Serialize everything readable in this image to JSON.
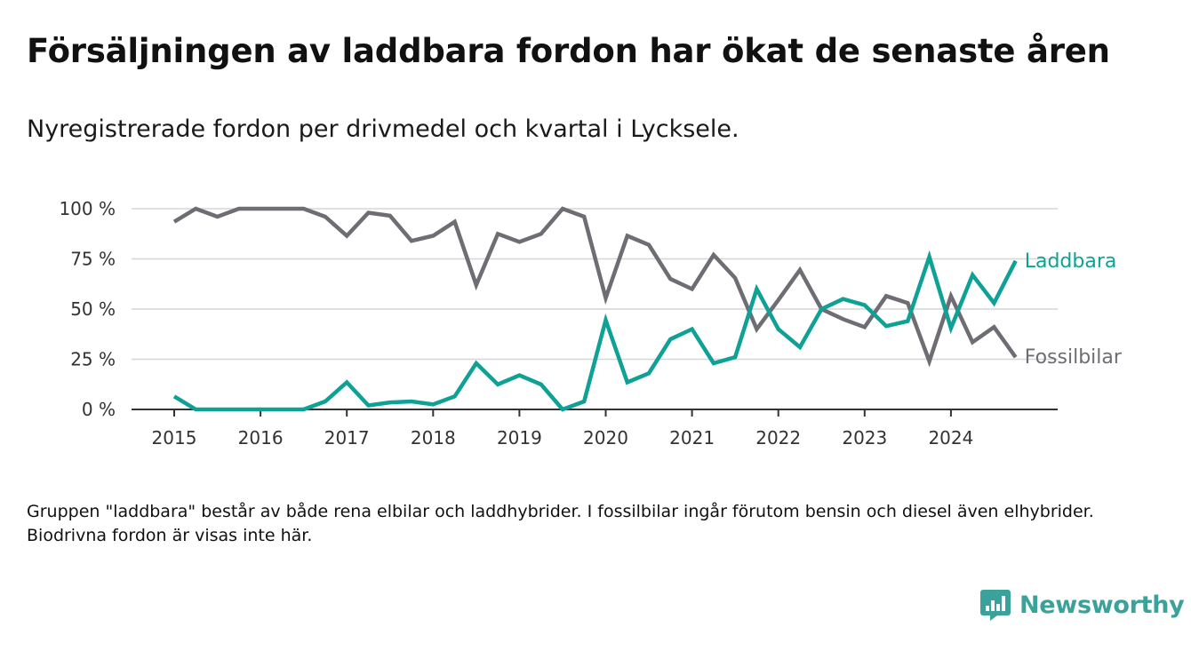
{
  "header": {
    "title": "Försäljningen av laddbara fordon har ökat de senaste åren",
    "subtitle": "Nyregistrerade fordon per drivmedel och kvartal i Lycksele."
  },
  "footer": {
    "note": "Gruppen \"laddbara\" består av både rena elbilar och laddhybrider. I fossilbilar ingår förutom bensin och diesel även elhybrider. Biodrivna fordon är visas inte här.",
    "brand": "Newsworthy"
  },
  "colors": {
    "laddbara": "#0fa195",
    "fossil": "#6e6d73",
    "grid": "#d6d6d6",
    "axis": "#333333",
    "brand": "#3aa29a"
  },
  "icons": {
    "brand": "bar-chart-logo-icon"
  },
  "chart_data": {
    "type": "line",
    "title": "Försäljningen av laddbara fordon har ökat de senaste åren",
    "subtitle": "Nyregistrerade fordon per drivmedel och kvartal i Lycksele.",
    "xlabel": "",
    "ylabel": "",
    "x_unit": "quarter",
    "xlim": [
      2014.5,
      2025.2
    ],
    "ylim": [
      0,
      100
    ],
    "x_ticks": [
      2015,
      2016,
      2017,
      2018,
      2019,
      2020,
      2021,
      2022,
      2023,
      2024
    ],
    "x_tick_labels": [
      "2015",
      "2016",
      "2017",
      "2018",
      "2019",
      "2020",
      "2021",
      "2022",
      "2023",
      "2024"
    ],
    "y_ticks": [
      0,
      25,
      50,
      75,
      100
    ],
    "y_tick_labels": [
      "0 %",
      "25 %",
      "50 %",
      "75 %",
      "100 %"
    ],
    "grid": true,
    "legend": "inline-right",
    "x": [
      "2015 Q1",
      "2015 Q2",
      "2015 Q3",
      "2015 Q4",
      "2016 Q1",
      "2016 Q2",
      "2016 Q3",
      "2016 Q4",
      "2017 Q1",
      "2017 Q2",
      "2017 Q3",
      "2017 Q4",
      "2018 Q1",
      "2018 Q2",
      "2018 Q3",
      "2018 Q4",
      "2019 Q1",
      "2019 Q2",
      "2019 Q3",
      "2019 Q4",
      "2020 Q1",
      "2020 Q2",
      "2020 Q3",
      "2020 Q4",
      "2021 Q1",
      "2021 Q2",
      "2021 Q3",
      "2021 Q4",
      "2022 Q1",
      "2022 Q2",
      "2022 Q3",
      "2022 Q4",
      "2023 Q1",
      "2023 Q2",
      "2023 Q3",
      "2023 Q4",
      "2024 Q1",
      "2024 Q2",
      "2024 Q3",
      "2024 Q4"
    ],
    "series": [
      {
        "name": "Laddbara",
        "color": "#0fa195",
        "values": [
          6.5,
          0,
          0,
          0,
          0,
          0,
          0,
          4,
          13.5,
          2,
          3.5,
          4,
          2.5,
          6.5,
          23,
          12.5,
          17,
          12.5,
          0,
          4,
          44.5,
          13.5,
          18,
          35,
          40,
          23,
          26,
          60,
          40,
          31,
          50,
          55,
          52,
          41.5,
          44,
          76,
          40.5,
          67,
          53,
          74
        ]
      },
      {
        "name": "Fossilbilar",
        "color": "#6e6d73",
        "values": [
          93.5,
          100,
          96,
          100,
          100,
          100,
          100,
          96,
          86.5,
          98,
          96.5,
          84,
          86.5,
          93.5,
          62,
          87.5,
          83.5,
          87.5,
          100,
          96,
          55.5,
          86.5,
          82,
          65,
          60,
          77,
          65.5,
          40,
          54.5,
          69.5,
          50,
          45,
          41,
          56.5,
          53,
          24,
          56.5,
          33.5,
          41,
          26
        ]
      }
    ]
  }
}
